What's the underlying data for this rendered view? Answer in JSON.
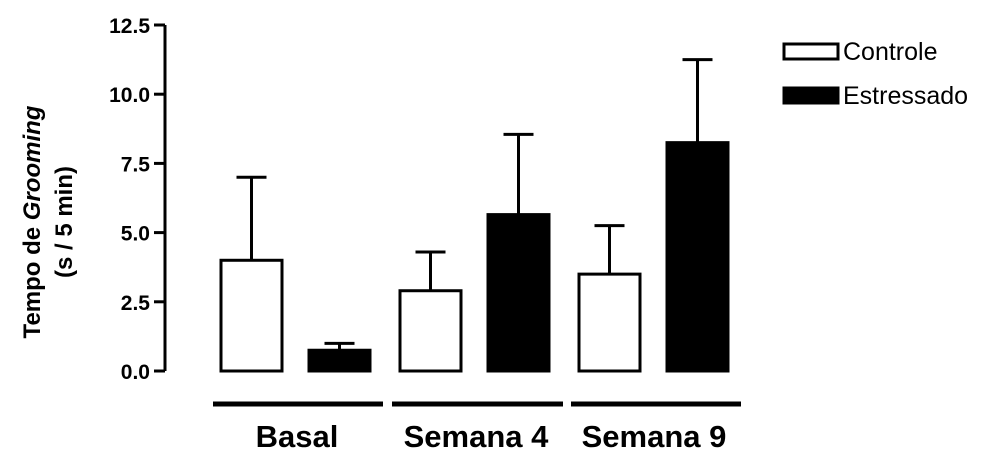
{
  "chart_data": {
    "type": "bar",
    "ylabel_main": "Tempo de ",
    "ylabel_italic": "Grooming",
    "ylabel_unit": "(s / 5 min)",
    "ylim": [
      0,
      12.5
    ],
    "yticks": [
      0,
      2.5,
      5,
      7.5,
      10,
      12.5
    ],
    "ytick_labels": [
      "0.0",
      "2.5",
      "5.0",
      "7.5",
      "10.0",
      "12.5"
    ],
    "categories": [
      "Basal",
      "Semana 4",
      "Semana 9"
    ],
    "series": [
      {
        "name": "Controle",
        "fill": "#ffffff",
        "values": [
          4.0,
          2.9,
          3.5
        ],
        "errors": [
          3.0,
          1.4,
          1.75
        ]
      },
      {
        "name": "Estressado",
        "fill": "#000000",
        "values": [
          0.75,
          5.65,
          8.25
        ],
        "errors": [
          0.25,
          2.9,
          3.0
        ]
      }
    ],
    "legend_position": "top-right",
    "grid": false
  }
}
